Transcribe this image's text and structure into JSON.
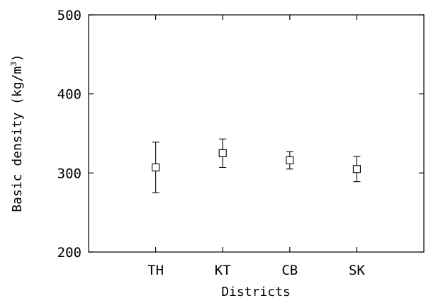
{
  "chart_data": {
    "type": "scatter",
    "title": "",
    "xlabel": "Districts",
    "ylabel": "Basic density (kg/m³)",
    "ylabel_parts": {
      "main": "Basic density (kg/m",
      "sup": "3",
      "close": ")"
    },
    "ylim": [
      200,
      500
    ],
    "yticks": [
      "200",
      "300",
      "400",
      "500"
    ],
    "categories": [
      "TH",
      "KT",
      "CB",
      "SK"
    ],
    "series": [
      {
        "values": [
          307,
          325,
          316,
          305
        ],
        "lower": [
          275,
          307,
          305,
          289
        ],
        "upper": [
          339,
          343,
          327,
          321
        ]
      }
    ],
    "marker": "open-square",
    "grid": false
  }
}
